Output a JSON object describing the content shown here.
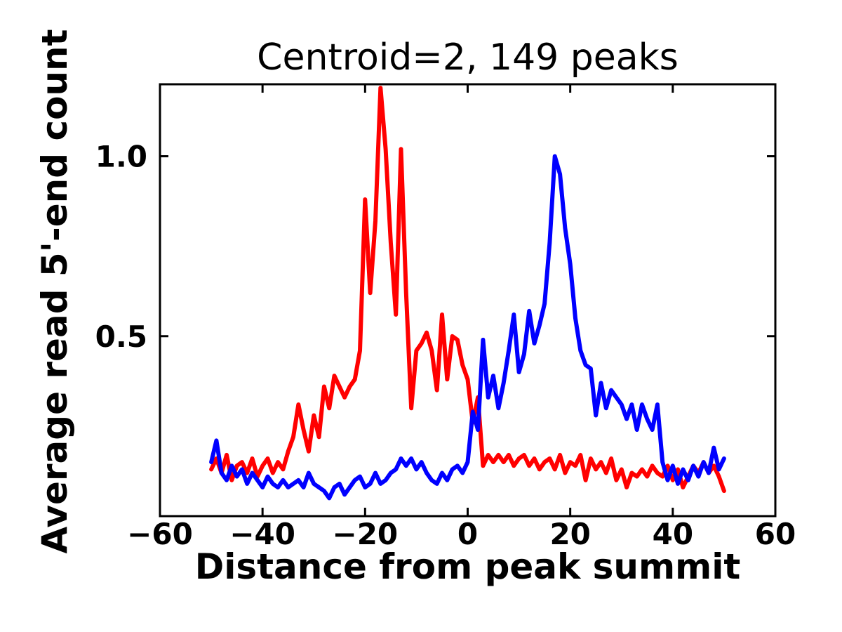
{
  "figure": {
    "background": "#ffffff",
    "frame_color": "#000000"
  },
  "chart_data": {
    "type": "line",
    "title": "Centroid=2, 149 peaks",
    "xlabel": "Distance from peak summit",
    "ylabel": "Average read 5'-end count",
    "xlim": [
      -60,
      60
    ],
    "ylim": [
      0,
      1.2
    ],
    "xticks": [
      -60,
      -40,
      -20,
      0,
      20,
      40,
      60
    ],
    "xtick_labels": [
      "−60",
      "−40",
      "−20",
      "0",
      "20",
      "40",
      "60"
    ],
    "yticks": [
      0.5,
      1.0
    ],
    "ytick_labels": [
      "0.5",
      "1.0"
    ],
    "grid": false,
    "legend_position": "none",
    "x": [
      -50,
      -49,
      -48,
      -47,
      -46,
      -45,
      -44,
      -43,
      -42,
      -41,
      -40,
      -39,
      -38,
      -37,
      -36,
      -35,
      -34,
      -33,
      -32,
      -31,
      -30,
      -29,
      -28,
      -27,
      -26,
      -25,
      -24,
      -23,
      -22,
      -21,
      -20,
      -19,
      -18,
      -17,
      -16,
      -15,
      -14,
      -13,
      -12,
      -11,
      -10,
      -9,
      -8,
      -7,
      -6,
      -5,
      -4,
      -3,
      -2,
      -1,
      0,
      1,
      2,
      3,
      4,
      5,
      6,
      7,
      8,
      9,
      10,
      11,
      12,
      13,
      14,
      15,
      16,
      17,
      18,
      19,
      20,
      21,
      22,
      23,
      24,
      25,
      26,
      27,
      28,
      29,
      30,
      31,
      32,
      33,
      34,
      35,
      36,
      37,
      38,
      39,
      40,
      41,
      42,
      43,
      44,
      45,
      46,
      47,
      48,
      49,
      50
    ],
    "series": [
      {
        "name": "red",
        "color": "#ff0000",
        "values": [
          0.13,
          0.16,
          0.12,
          0.17,
          0.1,
          0.14,
          0.15,
          0.12,
          0.16,
          0.11,
          0.14,
          0.16,
          0.12,
          0.15,
          0.13,
          0.18,
          0.22,
          0.31,
          0.24,
          0.18,
          0.28,
          0.22,
          0.36,
          0.3,
          0.39,
          0.36,
          0.33,
          0.36,
          0.38,
          0.46,
          0.88,
          0.62,
          0.82,
          1.19,
          1.02,
          0.76,
          0.56,
          1.02,
          0.62,
          0.3,
          0.46,
          0.48,
          0.51,
          0.46,
          0.35,
          0.56,
          0.38,
          0.5,
          0.49,
          0.42,
          0.38,
          0.26,
          0.33,
          0.14,
          0.17,
          0.15,
          0.17,
          0.15,
          0.17,
          0.14,
          0.16,
          0.17,
          0.14,
          0.16,
          0.13,
          0.15,
          0.16,
          0.13,
          0.17,
          0.12,
          0.15,
          0.14,
          0.17,
          0.1,
          0.16,
          0.13,
          0.15,
          0.12,
          0.16,
          0.1,
          0.13,
          0.08,
          0.12,
          0.11,
          0.13,
          0.11,
          0.14,
          0.12,
          0.11,
          0.14,
          0.1,
          0.13,
          0.08,
          0.11,
          0.14,
          0.12,
          0.15,
          0.12,
          0.14,
          0.11,
          0.07
        ]
      },
      {
        "name": "blue",
        "color": "#0000ff",
        "values": [
          0.15,
          0.21,
          0.12,
          0.1,
          0.14,
          0.11,
          0.13,
          0.09,
          0.12,
          0.1,
          0.08,
          0.11,
          0.09,
          0.08,
          0.1,
          0.08,
          0.09,
          0.1,
          0.08,
          0.12,
          0.09,
          0.08,
          0.07,
          0.05,
          0.08,
          0.09,
          0.06,
          0.08,
          0.1,
          0.11,
          0.08,
          0.09,
          0.12,
          0.09,
          0.1,
          0.12,
          0.13,
          0.16,
          0.14,
          0.16,
          0.13,
          0.15,
          0.12,
          0.1,
          0.09,
          0.12,
          0.1,
          0.13,
          0.14,
          0.12,
          0.15,
          0.29,
          0.24,
          0.49,
          0.33,
          0.39,
          0.3,
          0.37,
          0.46,
          0.56,
          0.4,
          0.45,
          0.57,
          0.48,
          0.53,
          0.59,
          0.76,
          1.0,
          0.95,
          0.8,
          0.7,
          0.55,
          0.46,
          0.42,
          0.41,
          0.28,
          0.37,
          0.3,
          0.35,
          0.33,
          0.31,
          0.27,
          0.31,
          0.24,
          0.31,
          0.27,
          0.24,
          0.31,
          0.15,
          0.1,
          0.14,
          0.09,
          0.13,
          0.1,
          0.14,
          0.11,
          0.15,
          0.12,
          0.19,
          0.13,
          0.16
        ]
      }
    ],
    "style": {
      "line_width": 6,
      "frame_width": 3,
      "tick_length": 12,
      "tick_width": 3
    }
  }
}
